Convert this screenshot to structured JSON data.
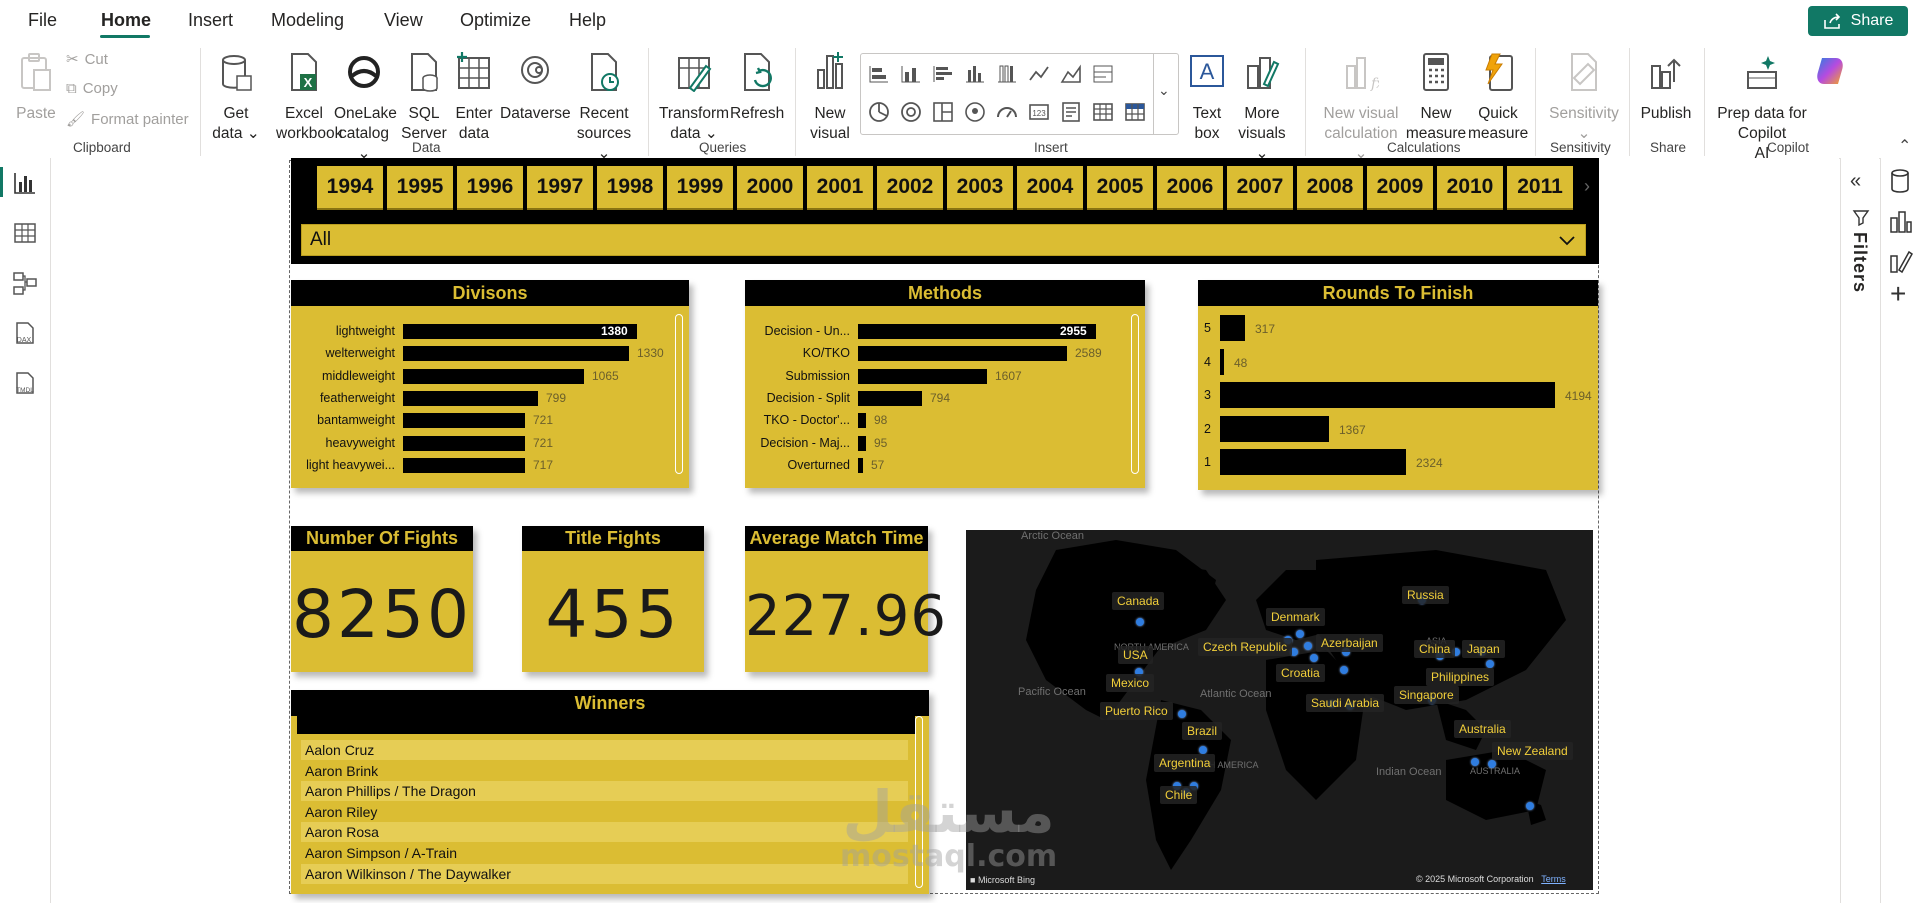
{
  "menu": {
    "items": [
      "File",
      "Home",
      "Insert",
      "Modeling",
      "View",
      "Optimize",
      "Help"
    ],
    "active": "Home",
    "share_label": "Share"
  },
  "ribbon": {
    "clipboard": {
      "paste": "Paste",
      "cut": "Cut",
      "copy": "Copy",
      "format_painter": "Format painter",
      "group": "Clipboard"
    },
    "data": {
      "get_data": [
        "Get",
        "data"
      ],
      "excel": [
        "Excel",
        "workbook"
      ],
      "onelake": [
        "OneLake",
        "catalog"
      ],
      "sql": [
        "SQL",
        "Server"
      ],
      "enter": [
        "Enter",
        "data"
      ],
      "dataverse": "Dataverse",
      "recent": [
        "Recent",
        "sources"
      ],
      "group": "Data"
    },
    "queries": {
      "transform": [
        "Transform",
        "data"
      ],
      "refresh": "Refresh",
      "group": "Queries"
    },
    "insert": {
      "new_visual": [
        "New",
        "visual"
      ],
      "text_box": [
        "Text",
        "box"
      ],
      "more_visuals": [
        "More",
        "visuals"
      ],
      "group": "Insert"
    },
    "calculations": {
      "new_visual_calc": [
        "New visual",
        "calculation"
      ],
      "new_measure": [
        "New",
        "measure"
      ],
      "quick_measure": [
        "Quick",
        "measure"
      ],
      "group": "Calculations"
    },
    "sensitivity": {
      "label": "Sensitivity",
      "group": "Sensitivity"
    },
    "share": {
      "publish": "Publish",
      "group": "Share"
    },
    "copilot": {
      "prep": [
        "Prep data for Copilot",
        "AI"
      ],
      "group": "Copilot"
    }
  },
  "filters_label": "Filters",
  "slicer": {
    "years": [
      "1994",
      "1995",
      "1996",
      "1997",
      "1998",
      "1999",
      "2000",
      "2001",
      "2002",
      "2003",
      "2004",
      "2005",
      "2006",
      "2007",
      "2008",
      "2009",
      "2010",
      "2011"
    ],
    "dropdown_value": "All"
  },
  "divisions": {
    "title": "Divisons",
    "rows": [
      {
        "label": "lightweight",
        "value": 1380
      },
      {
        "label": "welterweight",
        "value": 1330
      },
      {
        "label": "middleweight",
        "value": 1065
      },
      {
        "label": "featherweight",
        "value": 799
      },
      {
        "label": "bantamweight",
        "value": 721
      },
      {
        "label": "heavyweight",
        "value": 721
      },
      {
        "label": "light heavywei...",
        "value": 717
      }
    ]
  },
  "methods": {
    "title": "Methods",
    "rows": [
      {
        "label": "Decision - Un...",
        "value": 2955
      },
      {
        "label": "KO/TKO",
        "value": 2589
      },
      {
        "label": "Submission",
        "value": 1607
      },
      {
        "label": "Decision - Split",
        "value": 794
      },
      {
        "label": "TKO - Doctor'...",
        "value": 98
      },
      {
        "label": "Decision - Maj...",
        "value": 95
      },
      {
        "label": "Overturned",
        "value": 57
      }
    ]
  },
  "rounds": {
    "title": "Rounds To Finish",
    "rows": [
      {
        "label": "5",
        "value": 317
      },
      {
        "label": "4",
        "value": 48
      },
      {
        "label": "3",
        "value": 4194
      },
      {
        "label": "2",
        "value": 1367
      },
      {
        "label": "1",
        "value": 2324
      }
    ]
  },
  "kpis": {
    "fights": {
      "title": "Number Of Fights",
      "value": "8250"
    },
    "titles": {
      "title": "Title Fights",
      "value": "455"
    },
    "avg_time": {
      "title": "Average Match Time",
      "value": "227.96"
    }
  },
  "winners": {
    "title": "Winners",
    "rows": [
      "Aalon Cruz",
      "Aaron Brink",
      "Aaron Phillips / The Dragon",
      "Aaron Riley",
      "Aaron Rosa",
      "Aaron Simpson / A-Train",
      "Aaron Wilkinson / The Daywalker"
    ]
  },
  "map": {
    "countries": [
      "Canada",
      "USA",
      "Mexico",
      "Puerto Rico",
      "Brazil",
      "Argentina",
      "Chile",
      "Denmark",
      "Czech Republic",
      "Azerbaijan",
      "Croatia",
      "Saudi Arabia",
      "Russia",
      "China",
      "Japan",
      "Philippines",
      "Singapore",
      "Australia",
      "New Zealand"
    ],
    "oceans": [
      "Arctic Ocean",
      "Pacific Ocean",
      "Atlantic Ocean",
      "Indian Ocean",
      "NORTH AMERICA",
      "SOUTH AMERICA",
      "ASIA",
      "AUSTRALIA"
    ],
    "provider": "Microsoft Bing",
    "copyright": "© 2025 Microsoft Corporation",
    "terms": "Terms"
  },
  "watermark": {
    "arabic": "مستقل",
    "latin": "mostaql.com"
  },
  "chart_data": [
    {
      "type": "bar",
      "title": "Divisons",
      "categories": [
        "lightweight",
        "welterweight",
        "middleweight",
        "featherweight",
        "bantamweight",
        "heavyweight",
        "light heavywei..."
      ],
      "values": [
        1380,
        1330,
        1065,
        799,
        721,
        721,
        717
      ]
    },
    {
      "type": "bar",
      "title": "Methods",
      "categories": [
        "Decision - Un...",
        "KO/TKO",
        "Submission",
        "Decision - Split",
        "TKO - Doctor'...",
        "Decision - Maj...",
        "Overturned"
      ],
      "values": [
        2955,
        2589,
        1607,
        794,
        98,
        95,
        57
      ]
    },
    {
      "type": "bar",
      "title": "Rounds To Finish",
      "categories": [
        "5",
        "4",
        "3",
        "2",
        "1"
      ],
      "values": [
        317,
        48,
        4194,
        1367,
        2324
      ]
    }
  ],
  "colors": {
    "accent": "#dbbd33",
    "dark": "#000000",
    "brand": "#117865",
    "map_dot": "#2f7de0"
  }
}
